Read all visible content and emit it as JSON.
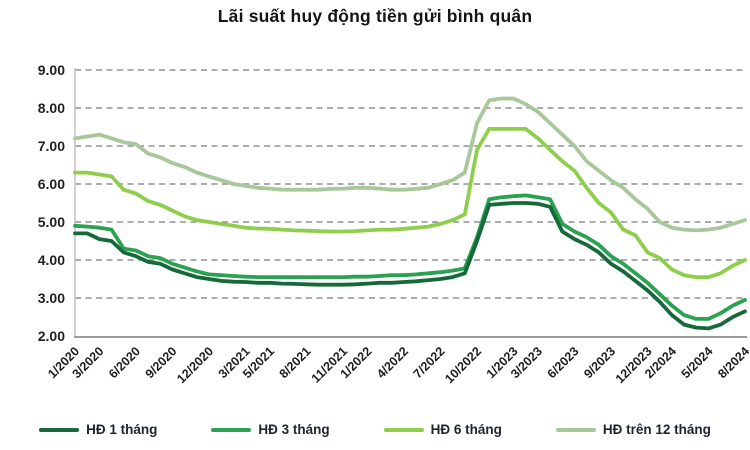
{
  "chart_data": {
    "type": "line",
    "title": "Lãi suất huy động tiền gửi bình quân",
    "xlabel": "",
    "ylabel": "",
    "ylim": [
      2,
      9
    ],
    "grid": "horizontal-dashed",
    "legend_position": "bottom",
    "y_tick_labels": [
      "2.00",
      "3.00",
      "4.00",
      "5.00",
      "6.00",
      "7.00",
      "8.00",
      "9.00"
    ],
    "x_tick_labels": [
      "1/2020",
      "3/2020",
      "6/2020",
      "9/2020",
      "12/2020",
      "3/2021",
      "5/2021",
      "8/2021",
      "11/2021",
      "1/2022",
      "4/2022",
      "7/2022",
      "10/2022",
      "1/2023",
      "3/2023",
      "6/2023",
      "9/2023",
      "12/2023",
      "2/2024",
      "5/2024",
      "8/2024"
    ],
    "x_tick_indices": [
      0,
      2,
      5,
      8,
      11,
      14,
      16,
      19,
      22,
      24,
      27,
      30,
      33,
      36,
      38,
      41,
      44,
      47,
      49,
      52,
      55
    ],
    "x_range_months": "1/2020 - 8/2024",
    "series": [
      {
        "id": "hd-tren-12-thang",
        "name": "HĐ trên 12 tháng",
        "color": "#a8c79b",
        "values": [
          7.2,
          7.25,
          7.3,
          7.2,
          7.1,
          7.05,
          6.8,
          6.7,
          6.55,
          6.45,
          6.3,
          6.2,
          6.1,
          6.0,
          5.95,
          5.9,
          5.88,
          5.85,
          5.85,
          5.85,
          5.85,
          5.87,
          5.88,
          5.9,
          5.9,
          5.88,
          5.85,
          5.85,
          5.87,
          5.9,
          6.0,
          6.1,
          6.3,
          7.6,
          8.2,
          8.25,
          8.25,
          8.1,
          7.9,
          7.6,
          7.3,
          7.0,
          6.6,
          6.35,
          6.1,
          5.9,
          5.6,
          5.35,
          5.0,
          4.85,
          4.8,
          4.78,
          4.8,
          4.85,
          4.95,
          5.05
        ]
      },
      {
        "id": "hd-6-thang",
        "name": "HĐ 6 tháng",
        "color": "#8fce4c",
        "values": [
          6.3,
          6.3,
          6.25,
          6.2,
          5.85,
          5.75,
          5.55,
          5.45,
          5.3,
          5.15,
          5.05,
          5.0,
          4.95,
          4.9,
          4.85,
          4.83,
          4.82,
          4.8,
          4.78,
          4.77,
          4.76,
          4.75,
          4.75,
          4.76,
          4.78,
          4.8,
          4.8,
          4.82,
          4.85,
          4.88,
          4.95,
          5.05,
          5.2,
          6.9,
          7.45,
          7.45,
          7.45,
          7.45,
          7.2,
          6.9,
          6.6,
          6.35,
          5.9,
          5.5,
          5.25,
          4.8,
          4.65,
          4.2,
          4.05,
          3.75,
          3.6,
          3.55,
          3.55,
          3.65,
          3.85,
          4.0
        ]
      },
      {
        "id": "hd-3-thang",
        "name": "HĐ 3 tháng",
        "color": "#2aa251",
        "values": [
          4.9,
          4.88,
          4.85,
          4.8,
          4.3,
          4.25,
          4.1,
          4.05,
          3.9,
          3.8,
          3.7,
          3.62,
          3.6,
          3.58,
          3.56,
          3.55,
          3.55,
          3.55,
          3.55,
          3.55,
          3.55,
          3.55,
          3.55,
          3.56,
          3.56,
          3.58,
          3.6,
          3.6,
          3.62,
          3.65,
          3.68,
          3.72,
          3.78,
          4.6,
          5.6,
          5.65,
          5.68,
          5.7,
          5.65,
          5.6,
          4.95,
          4.75,
          4.6,
          4.4,
          4.1,
          3.9,
          3.65,
          3.4,
          3.1,
          2.8,
          2.55,
          2.45,
          2.45,
          2.6,
          2.8,
          2.95
        ]
      },
      {
        "id": "hd-1-thang",
        "name": "HĐ 1 tháng",
        "color": "#17693a",
        "values": [
          4.7,
          4.7,
          4.55,
          4.5,
          4.2,
          4.1,
          3.95,
          3.9,
          3.75,
          3.65,
          3.55,
          3.5,
          3.45,
          3.43,
          3.42,
          3.4,
          3.4,
          3.38,
          3.37,
          3.36,
          3.35,
          3.35,
          3.35,
          3.36,
          3.38,
          3.4,
          3.4,
          3.42,
          3.44,
          3.47,
          3.5,
          3.55,
          3.65,
          4.5,
          5.45,
          5.48,
          5.5,
          5.5,
          5.48,
          5.4,
          4.75,
          4.55,
          4.4,
          4.2,
          3.9,
          3.7,
          3.45,
          3.2,
          2.9,
          2.55,
          2.3,
          2.22,
          2.2,
          2.3,
          2.5,
          2.65
        ]
      }
    ],
    "legend_order": [
      "hd-1-thang",
      "hd-3-thang",
      "hd-6-thang",
      "hd-tren-12-thang"
    ],
    "colors": {
      "gridline": "#909090",
      "axis": "#9a9a9a",
      "left_axis": "#c2c2c2",
      "tick_text": "#1f1f1f",
      "title_text": "#141414"
    }
  }
}
